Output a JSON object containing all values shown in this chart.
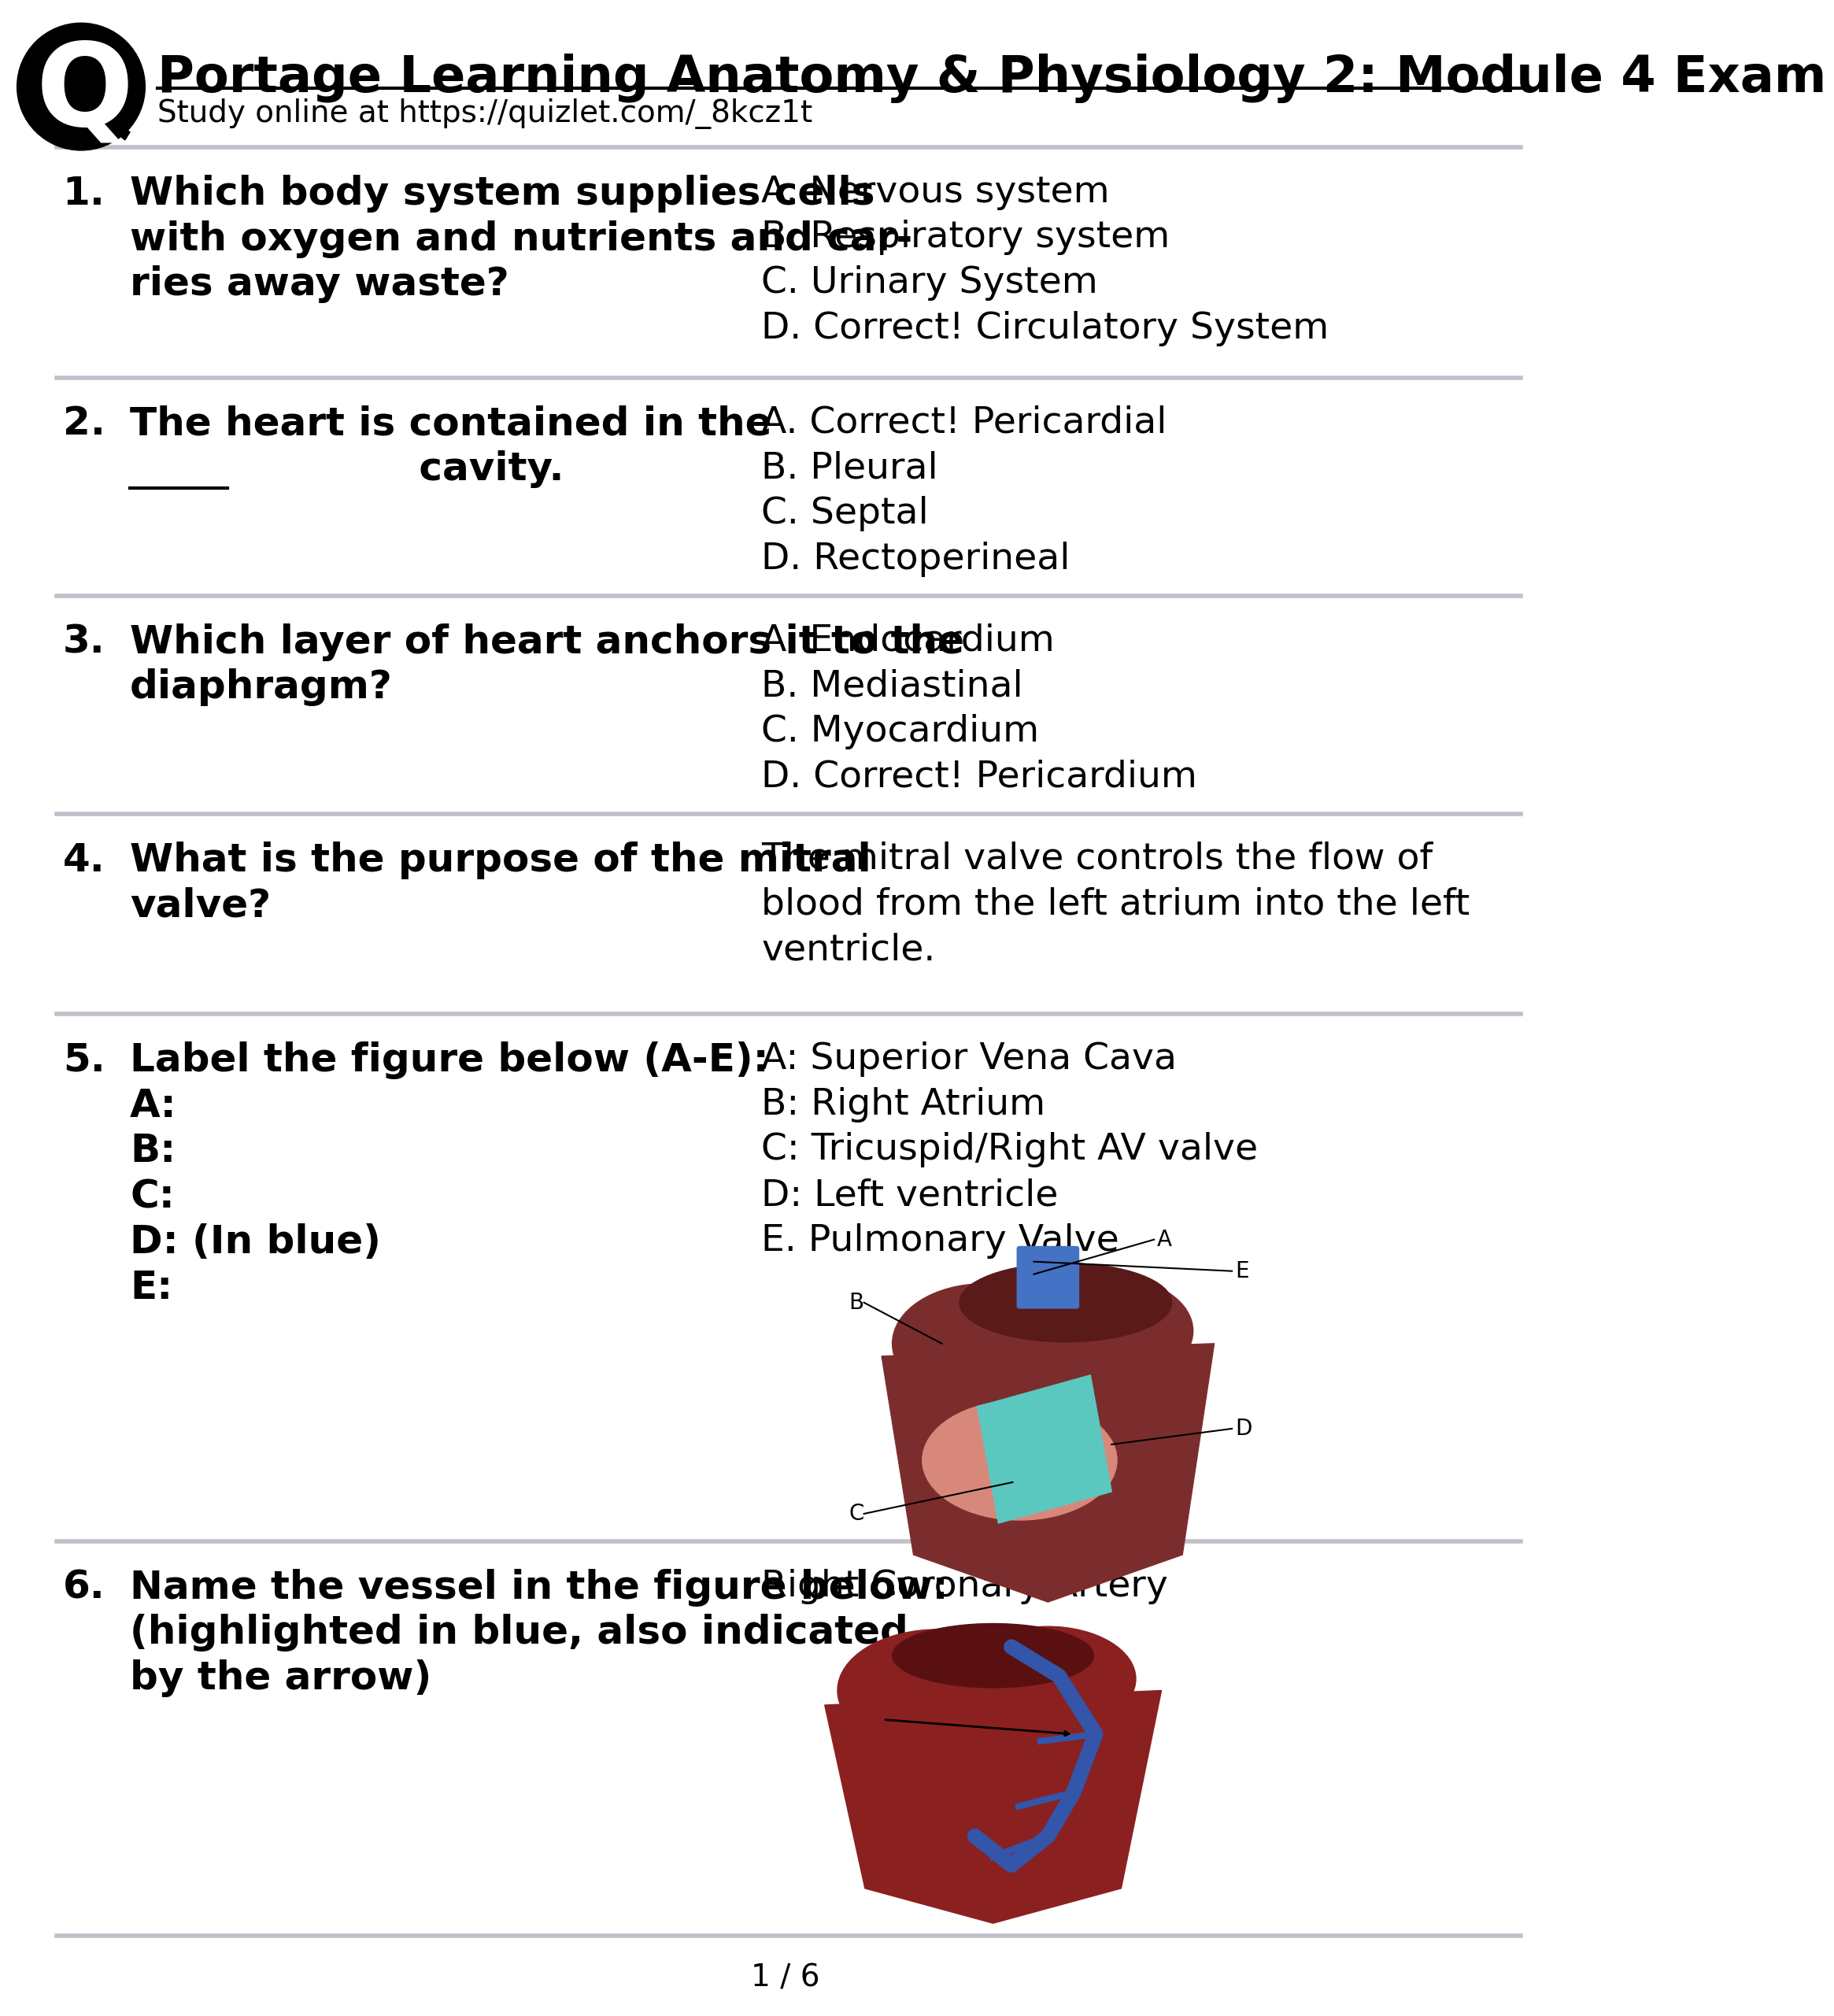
{
  "title": "Portage Learning Anatomy & Physiology 2: Module 4 Exam",
  "subtitle": "Study online at https://quizlet.com/_8kcz1t",
  "bg_color": "#ffffff",
  "separator_color": "#c0c0cc",
  "questions": [
    {
      "number": "1.",
      "q_lines": [
        "Which body system supplies cells",
        "with oxygen and nutrients and car-",
        "ries away waste?"
      ],
      "a_lines": [
        "A. Nervous system",
        "B. Respiratory system",
        "C. Urinary System",
        "D. Correct! Circulatory System"
      ]
    },
    {
      "number": "2.",
      "q_lines": [
        "The heart is contained in the",
        "        cavity."
      ],
      "a_lines": [
        "A. Correct! Pericardial",
        "B. Pleural",
        "C. Septal",
        "D. Rectoperineal"
      ]
    },
    {
      "number": "3.",
      "q_lines": [
        "Which layer of heart anchors it to the",
        "diaphragm?"
      ],
      "a_lines": [
        "A. Endocardium",
        "B. Mediastinal",
        "C. Myocardium",
        "D. Correct! Pericardium"
      ]
    },
    {
      "number": "4.",
      "q_lines": [
        "What is the purpose of the mitral",
        "valve?"
      ],
      "a_lines": [
        "The mitral valve controls the flow of",
        "blood from the left atrium into the left",
        "ventricle."
      ]
    },
    {
      "number": "5.",
      "q_lines": [
        "Label the figure below (A-E):",
        "A:",
        "B:",
        "C:",
        "D: (In blue)",
        "E:"
      ],
      "a_lines": [
        "A: Superior Vena Cava",
        "B: Right Atrium",
        "C: Tricuspid/Right AV valve",
        "D: Left ventricle",
        "E. Pulmonary Valve"
      ]
    },
    {
      "number": "6.",
      "q_lines_bold": [
        "Name the vessel in the figure below:"
      ],
      "q_lines_bold2": [
        "(highlighted in blue, also indicated",
        "by the arrow)"
      ],
      "a_line_normal": "Right Coronary Artery",
      "q_lines": [
        "Name the vessel in the figure below:",
        "(highlighted in blue, also indicated",
        "by the arrow)"
      ],
      "a_lines": [
        "Right Coronary Artery"
      ]
    }
  ],
  "page_footer": "1 / 6",
  "q_bold_color": "#000000",
  "a_normal_color": "#000000",
  "num_color": "#000000",
  "header_line_color": "#000000",
  "q6_answer_inline": true
}
